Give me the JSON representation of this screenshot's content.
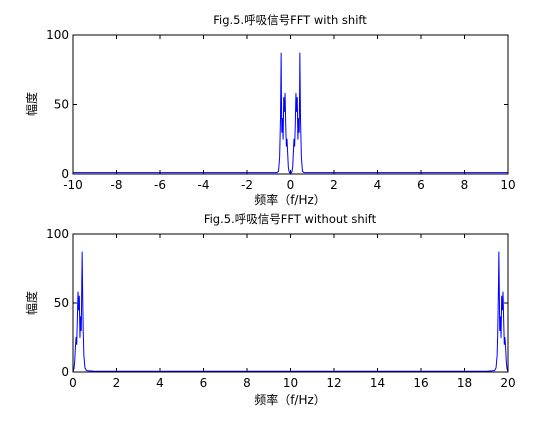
{
  "chart_data": [
    {
      "type": "line",
      "title": "Fig.5.呼吸信号FFT with shift",
      "xlabel": "频率（f/Hz）",
      "ylabel": "幅度",
      "xlim": [
        -10,
        10
      ],
      "ylim": [
        0,
        100
      ],
      "xticks": [
        -10,
        -8,
        -6,
        -4,
        -2,
        0,
        2,
        4,
        6,
        8,
        10
      ],
      "yticks": [
        0,
        50,
        100
      ],
      "xtick_labels": [
        "-10",
        "-8",
        "-6",
        "-4",
        "-2",
        "0",
        "2",
        "4",
        "6",
        "8",
        "10"
      ],
      "ytick_labels": [
        "0",
        "50",
        "100"
      ],
      "grid": false,
      "series": [
        {
          "color": "#0000ff",
          "x": [
            -10,
            -0.62,
            -0.55,
            -0.5,
            -0.46,
            -0.43,
            -0.42,
            -0.4,
            -0.37,
            -0.34,
            -0.31,
            -0.28,
            -0.25,
            -0.22,
            -0.19,
            -0.16,
            -0.13,
            -0.1,
            -0.07,
            -0.04,
            -0.01,
            0,
            0.01,
            0.04,
            0.07,
            0.1,
            0.13,
            0.16,
            0.19,
            0.22,
            0.25,
            0.28,
            0.31,
            0.34,
            0.37,
            0.4,
            0.42,
            0.43,
            0.46,
            0.5,
            0.55,
            0.62,
            10
          ],
          "y": [
            1,
            1,
            2,
            12,
            40,
            87,
            60,
            30,
            40,
            25,
            55,
            45,
            58,
            35,
            20,
            25,
            15,
            5,
            2,
            1,
            0.5,
            0.5,
            0.5,
            1,
            2,
            5,
            15,
            25,
            20,
            35,
            58,
            45,
            55,
            25,
            40,
            30,
            60,
            87,
            40,
            12,
            2,
            1,
            1
          ]
        }
      ]
    },
    {
      "type": "line",
      "title": "Fig.5.呼吸信号FFT without shift",
      "xlabel": "频率（f/Hz）",
      "ylabel": "幅度",
      "xlim": [
        0,
        20
      ],
      "ylim": [
        0,
        100
      ],
      "xticks": [
        0,
        2,
        4,
        6,
        8,
        10,
        12,
        14,
        16,
        18,
        20
      ],
      "yticks": [
        0,
        50,
        100
      ],
      "xtick_labels": [
        "0",
        "2",
        "4",
        "6",
        "8",
        "10",
        "12",
        "14",
        "16",
        "18",
        "20"
      ],
      "ytick_labels": [
        "0",
        "50",
        "100"
      ],
      "grid": false,
      "series": [
        {
          "color": "#0000ff",
          "x": [
            0,
            0.02,
            0.05,
            0.08,
            0.11,
            0.14,
            0.17,
            0.2,
            0.23,
            0.26,
            0.29,
            0.32,
            0.35,
            0.38,
            0.42,
            0.44,
            0.47,
            0.5,
            0.55,
            0.62,
            1,
            19,
            19.38,
            19.45,
            19.5,
            19.53,
            19.56,
            19.58,
            19.62,
            19.65,
            19.68,
            19.71,
            19.74,
            19.77,
            19.8,
            19.83,
            19.86,
            19.89,
            19.92,
            19.95,
            19.98,
            20
          ],
          "y": [
            0.5,
            1,
            3,
            8,
            18,
            25,
            20,
            38,
            58,
            45,
            55,
            25,
            40,
            30,
            87,
            60,
            30,
            12,
            3,
            1,
            0.5,
            0.5,
            1,
            3,
            12,
            30,
            60,
            87,
            30,
            40,
            25,
            55,
            45,
            58,
            38,
            20,
            25,
            18,
            8,
            3,
            1,
            0.5
          ]
        }
      ]
    }
  ]
}
